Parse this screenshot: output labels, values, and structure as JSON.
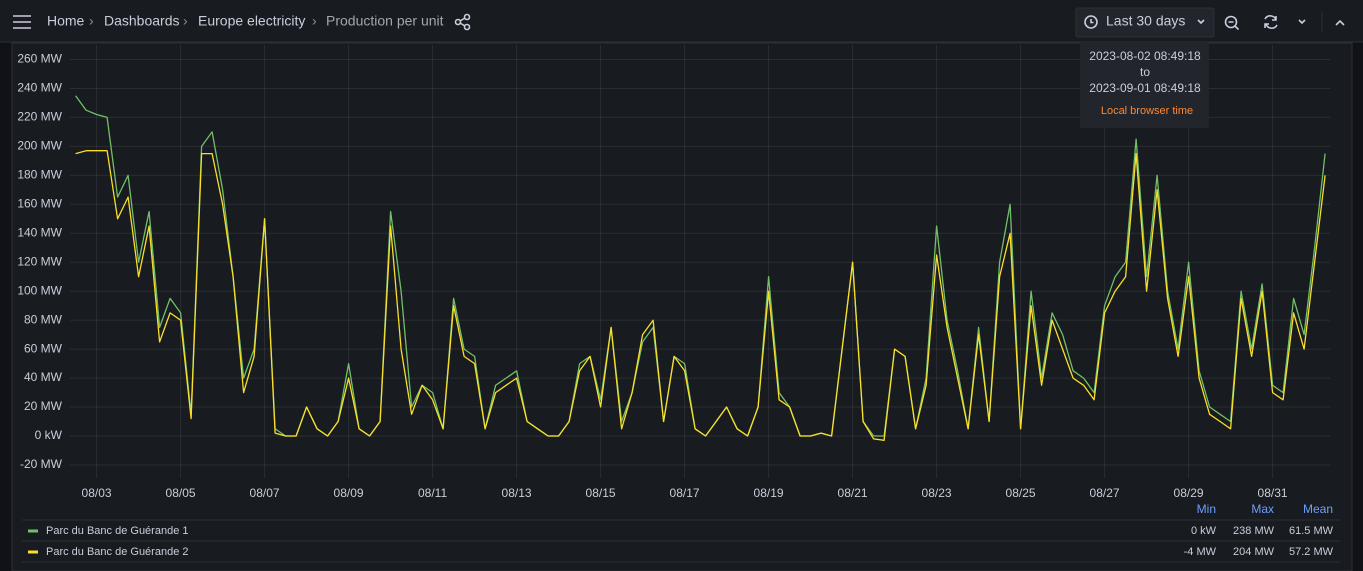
{
  "breadcrumb": [
    "Home",
    "Dashboards",
    "Europe electricity",
    "Production per unit"
  ],
  "time_picker": "Last 30 days",
  "tooltip": {
    "from": "2023-08-02 08:49:18",
    "to_label": "to",
    "to": "2023-09-01 08:49:18",
    "zone": "Local browser time"
  },
  "chart_data": {
    "type": "line",
    "x": [
      "2023-08-02T12:00",
      "2023-08-02T18:00",
      "2023-08-03T00:00",
      "2023-08-03T06:00",
      "2023-08-03T12:00",
      "2023-08-03T18:00",
      "2023-08-04T00:00",
      "2023-08-04T06:00",
      "2023-08-04T12:00",
      "2023-08-04T18:00",
      "2023-08-05T00:00",
      "2023-08-05T06:00",
      "2023-08-05T12:00",
      "2023-08-05T18:00",
      "2023-08-06T00:00",
      "2023-08-06T06:00",
      "2023-08-06T12:00",
      "2023-08-06T18:00",
      "2023-08-07T00:00",
      "2023-08-07T06:00",
      "2023-08-07T12:00",
      "2023-08-07T18:00",
      "2023-08-08T00:00",
      "2023-08-08T06:00",
      "2023-08-08T12:00",
      "2023-08-08T18:00",
      "2023-08-09T00:00",
      "2023-08-09T06:00",
      "2023-08-09T12:00",
      "2023-08-09T18:00",
      "2023-08-10T00:00",
      "2023-08-10T06:00",
      "2023-08-10T12:00",
      "2023-08-10T18:00",
      "2023-08-11T00:00",
      "2023-08-11T06:00",
      "2023-08-11T12:00",
      "2023-08-11T18:00",
      "2023-08-12T00:00",
      "2023-08-12T06:00",
      "2023-08-12T12:00",
      "2023-08-12T18:00",
      "2023-08-13T00:00",
      "2023-08-13T06:00",
      "2023-08-13T12:00",
      "2023-08-13T18:00",
      "2023-08-14T00:00",
      "2023-08-14T06:00",
      "2023-08-14T12:00",
      "2023-08-14T18:00",
      "2023-08-15T00:00",
      "2023-08-15T06:00",
      "2023-08-15T12:00",
      "2023-08-15T18:00",
      "2023-08-16T00:00",
      "2023-08-16T06:00",
      "2023-08-16T12:00",
      "2023-08-16T18:00",
      "2023-08-17T00:00",
      "2023-08-17T06:00",
      "2023-08-17T12:00",
      "2023-08-17T18:00",
      "2023-08-18T00:00",
      "2023-08-18T06:00",
      "2023-08-18T12:00",
      "2023-08-18T18:00",
      "2023-08-19T00:00",
      "2023-08-19T06:00",
      "2023-08-19T12:00",
      "2023-08-19T18:00",
      "2023-08-20T00:00",
      "2023-08-20T06:00",
      "2023-08-20T12:00",
      "2023-08-20T18:00",
      "2023-08-21T00:00",
      "2023-08-21T06:00",
      "2023-08-21T12:00",
      "2023-08-21T18:00",
      "2023-08-22T00:00",
      "2023-08-22T06:00",
      "2023-08-22T12:00",
      "2023-08-22T18:00",
      "2023-08-23T00:00",
      "2023-08-23T06:00",
      "2023-08-23T12:00",
      "2023-08-23T18:00",
      "2023-08-24T00:00",
      "2023-08-24T06:00",
      "2023-08-24T12:00",
      "2023-08-24T18:00",
      "2023-08-25T00:00",
      "2023-08-25T06:00",
      "2023-08-25T12:00",
      "2023-08-25T18:00",
      "2023-08-26T00:00",
      "2023-08-26T06:00",
      "2023-08-26T12:00",
      "2023-08-26T18:00",
      "2023-08-27T00:00",
      "2023-08-27T06:00",
      "2023-08-27T12:00",
      "2023-08-27T18:00",
      "2023-08-28T00:00",
      "2023-08-28T06:00",
      "2023-08-28T12:00",
      "2023-08-28T18:00",
      "2023-08-29T00:00",
      "2023-08-29T06:00",
      "2023-08-29T12:00",
      "2023-08-29T18:00",
      "2023-08-30T00:00",
      "2023-08-30T06:00",
      "2023-08-30T12:00",
      "2023-08-30T18:00",
      "2023-08-31T00:00",
      "2023-08-31T06:00",
      "2023-08-31T12:00",
      "2023-08-31T18:00",
      "2023-09-01T00:00",
      "2023-09-01T06:00"
    ],
    "series": [
      {
        "name": "Parc du Banc de Guérande 1",
        "color": "#73bf69",
        "values": [
          235,
          225,
          222,
          220,
          165,
          180,
          120,
          155,
          75,
          95,
          85,
          15,
          200,
          210,
          170,
          110,
          40,
          60,
          150,
          5,
          0,
          0,
          20,
          5,
          0,
          10,
          50,
          5,
          0,
          10,
          155,
          100,
          20,
          35,
          30,
          5,
          95,
          60,
          55,
          5,
          35,
          40,
          45,
          10,
          5,
          0,
          0,
          10,
          50,
          55,
          25,
          75,
          10,
          30,
          65,
          75,
          10,
          55,
          50,
          5,
          0,
          10,
          20,
          5,
          0,
          20,
          110,
          30,
          20,
          0,
          0,
          2,
          0,
          60,
          120,
          10,
          0,
          0,
          60,
          55,
          5,
          40,
          145,
          80,
          45,
          5,
          75,
          10,
          120,
          160,
          5,
          100,
          40,
          85,
          70,
          45,
          40,
          30,
          90,
          110,
          120,
          205,
          110,
          180,
          100,
          60,
          120,
          45,
          20,
          15,
          10,
          100,
          60,
          105,
          35,
          30,
          95,
          70,
          130,
          195
        ]
      },
      {
        "name": "Parc du Banc de Guérande 2",
        "color": "#fade2a",
        "values": [
          195,
          197,
          197,
          197,
          150,
          165,
          110,
          145,
          65,
          85,
          80,
          12,
          195,
          195,
          160,
          110,
          30,
          55,
          150,
          2,
          0,
          0,
          20,
          5,
          0,
          10,
          40,
          5,
          0,
          10,
          145,
          60,
          15,
          35,
          25,
          5,
          90,
          55,
          50,
          5,
          30,
          35,
          40,
          10,
          5,
          0,
          0,
          10,
          45,
          55,
          20,
          75,
          5,
          30,
          70,
          80,
          10,
          55,
          45,
          5,
          0,
          10,
          20,
          5,
          0,
          20,
          100,
          25,
          20,
          0,
          0,
          2,
          0,
          60,
          120,
          10,
          -2,
          -3,
          60,
          55,
          5,
          35,
          125,
          75,
          40,
          5,
          70,
          10,
          110,
          140,
          5,
          90,
          35,
          80,
          60,
          40,
          35,
          25,
          85,
          100,
          110,
          195,
          100,
          170,
          95,
          55,
          110,
          40,
          15,
          10,
          5,
          95,
          55,
          100,
          30,
          25,
          85,
          60,
          120,
          180
        ]
      }
    ],
    "xlim": [
      "2023-08-02T08:49:18",
      "2023-09-01T08:49:18"
    ],
    "xticks": [
      {
        "value": "2023-08-03",
        "label": "08/03"
      },
      {
        "value": "2023-08-05",
        "label": "08/05"
      },
      {
        "value": "2023-08-07",
        "label": "08/07"
      },
      {
        "value": "2023-08-09",
        "label": "08/09"
      },
      {
        "value": "2023-08-11",
        "label": "08/11"
      },
      {
        "value": "2023-08-13",
        "label": "08/13"
      },
      {
        "value": "2023-08-15",
        "label": "08/15"
      },
      {
        "value": "2023-08-17",
        "label": "08/17"
      },
      {
        "value": "2023-08-19",
        "label": "08/19"
      },
      {
        "value": "2023-08-21",
        "label": "08/21"
      },
      {
        "value": "2023-08-23",
        "label": "08/23"
      },
      {
        "value": "2023-08-25",
        "label": "08/25"
      },
      {
        "value": "2023-08-27",
        "label": "08/27"
      },
      {
        "value": "2023-08-29",
        "label": "08/29"
      },
      {
        "value": "2023-08-31",
        "label": "08/31"
      }
    ],
    "ylim": [
      -29,
      270
    ],
    "yticks": [
      {
        "value": -20,
        "label": "-20 MW"
      },
      {
        "value": 0,
        "label": "0 kW"
      },
      {
        "value": 20,
        "label": "20 MW"
      },
      {
        "value": 40,
        "label": "40 MW"
      },
      {
        "value": 60,
        "label": "60 MW"
      },
      {
        "value": 80,
        "label": "80 MW"
      },
      {
        "value": 100,
        "label": "100 MW"
      },
      {
        "value": 120,
        "label": "120 MW"
      },
      {
        "value": 140,
        "label": "140 MW"
      },
      {
        "value": 160,
        "label": "160 MW"
      },
      {
        "value": 180,
        "label": "180 MW"
      },
      {
        "value": 200,
        "label": "200 MW"
      },
      {
        "value": 220,
        "label": "220 MW"
      },
      {
        "value": 240,
        "label": "240 MW"
      },
      {
        "value": 260,
        "label": "260 MW"
      }
    ],
    "grid": true
  },
  "legend_table": {
    "headers": [
      "Min",
      "Max",
      "Mean"
    ],
    "rows": [
      [
        "0 kW",
        "238 MW",
        "61.5 MW"
      ],
      [
        "-4 MW",
        "204 MW",
        "57.2 MW"
      ]
    ]
  }
}
